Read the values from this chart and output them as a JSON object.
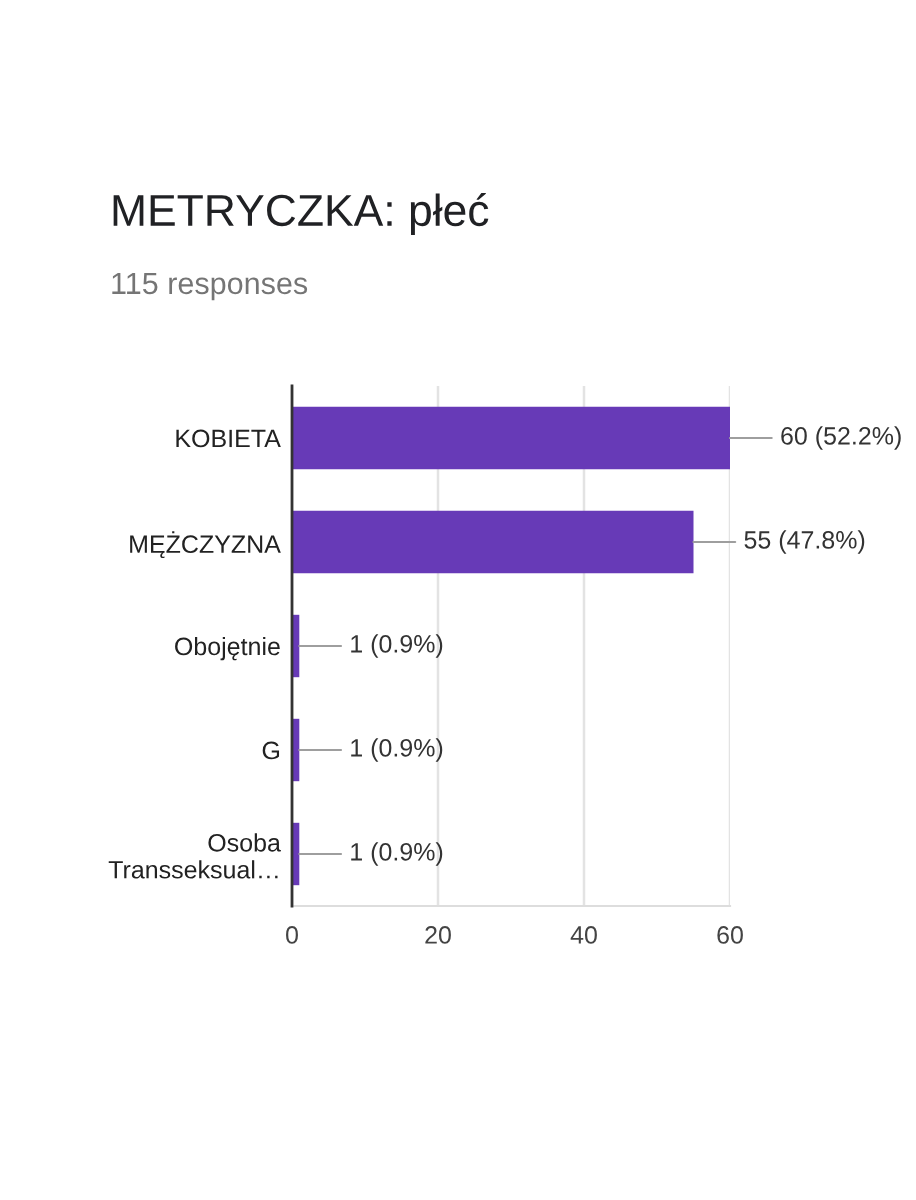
{
  "chart_data": {
    "type": "bar",
    "orientation": "horizontal",
    "title": "METRYCZKA: płeć",
    "subtitle": "115 responses",
    "categories": [
      "KOBIETA",
      "MĘŻCZYZNA",
      "Obojętnie",
      "G",
      "Osoba\nTransseksual…"
    ],
    "values": [
      60,
      55,
      1,
      1,
      1
    ],
    "color": "#673ab7",
    "value_labels": [
      "60 (52.2%)",
      "55 (47.8%)",
      "1 (0.9%)",
      "1 (0.9%)",
      "1 (0.9%)"
    ],
    "xlim": [
      0,
      60
    ],
    "xticks": [
      0,
      20,
      40,
      60
    ],
    "grid": "x"
  }
}
